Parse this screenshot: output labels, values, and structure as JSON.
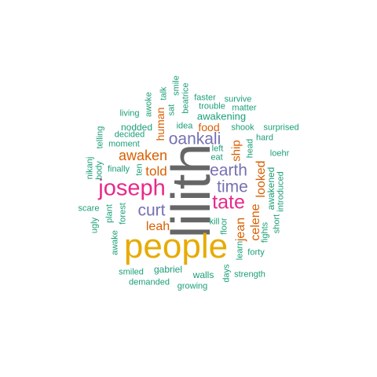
{
  "colors": {
    "teal": "#1b9e77",
    "orange": "#d95f02",
    "purple": "#7570b3",
    "magenta": "#e7298a",
    "gold": "#e6ab02",
    "gray": "#666666"
  },
  "words": [
    {
      "text": "lilith",
      "color": "gray"
    },
    {
      "text": "people",
      "color": "gold"
    },
    {
      "text": "joseph",
      "color": "magenta"
    },
    {
      "text": "tate",
      "color": "magenta"
    },
    {
      "text": "oankali",
      "color": "purple"
    },
    {
      "text": "curt",
      "color": "purple"
    },
    {
      "text": "time",
      "color": "purple"
    },
    {
      "text": "earth",
      "color": "purple"
    },
    {
      "text": "awaken",
      "color": "orange"
    },
    {
      "text": "told",
      "color": "orange"
    },
    {
      "text": "leah",
      "color": "orange"
    },
    {
      "text": "jean",
      "color": "orange"
    },
    {
      "text": "celene",
      "color": "orange"
    },
    {
      "text": "looked",
      "color": "orange"
    },
    {
      "text": "ship",
      "color": "orange"
    },
    {
      "text": "human",
      "color": "orange"
    },
    {
      "text": "food",
      "color": "orange"
    },
    {
      "text": "awakening",
      "color": "teal"
    },
    {
      "text": "shook",
      "color": "teal"
    },
    {
      "text": "surprised",
      "color": "teal"
    },
    {
      "text": "hard",
      "color": "teal"
    },
    {
      "text": "loehr",
      "color": "teal"
    },
    {
      "text": "awakened",
      "color": "teal"
    },
    {
      "text": "introduced",
      "color": "teal"
    },
    {
      "text": "short",
      "color": "teal"
    },
    {
      "text": "fights",
      "color": "teal"
    },
    {
      "text": "forty",
      "color": "teal"
    },
    {
      "text": "strength",
      "color": "teal"
    },
    {
      "text": "days",
      "color": "teal"
    },
    {
      "text": "walls",
      "color": "teal"
    },
    {
      "text": "growing",
      "color": "teal"
    },
    {
      "text": "gabriel",
      "color": "teal"
    },
    {
      "text": "demanded",
      "color": "teal"
    },
    {
      "text": "smiled",
      "color": "teal"
    },
    {
      "text": "awake",
      "color": "teal"
    },
    {
      "text": "plant",
      "color": "teal"
    },
    {
      "text": "forest",
      "color": "teal"
    },
    {
      "text": "ugly",
      "color": "teal"
    },
    {
      "text": "scare",
      "color": "teal"
    },
    {
      "text": "nikanj",
      "color": "teal"
    },
    {
      "text": "body",
      "color": "teal"
    },
    {
      "text": "telling",
      "color": "teal"
    },
    {
      "text": "finally",
      "color": "teal"
    },
    {
      "text": "ten",
      "color": "teal"
    },
    {
      "text": "decided",
      "color": "teal"
    },
    {
      "text": "moment",
      "color": "teal"
    },
    {
      "text": "nodded",
      "color": "teal"
    },
    {
      "text": "living",
      "color": "teal"
    },
    {
      "text": "awoke",
      "color": "teal"
    },
    {
      "text": "talk",
      "color": "teal"
    },
    {
      "text": "sat",
      "color": "teal"
    },
    {
      "text": "smile",
      "color": "teal"
    },
    {
      "text": "beatrice",
      "color": "teal"
    },
    {
      "text": "faster",
      "color": "teal"
    },
    {
      "text": "survive",
      "color": "teal"
    },
    {
      "text": "trouble",
      "color": "teal"
    },
    {
      "text": "matter",
      "color": "teal"
    },
    {
      "text": "idea",
      "color": "teal"
    },
    {
      "text": "left",
      "color": "teal"
    },
    {
      "text": "eat",
      "color": "teal"
    },
    {
      "text": "kill",
      "color": "teal"
    },
    {
      "text": "floor",
      "color": "teal"
    },
    {
      "text": "learn",
      "color": "teal"
    },
    {
      "text": "head",
      "color": "teal"
    }
  ]
}
